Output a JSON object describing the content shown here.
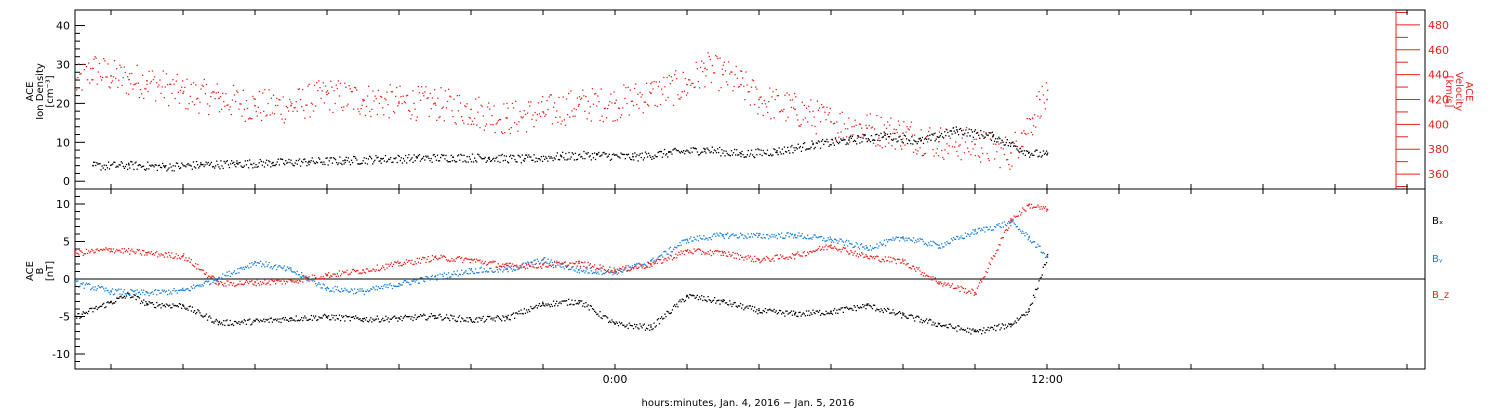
{
  "chart_data": [
    {
      "type": "scatter",
      "panel": "top",
      "ylabel": [
        "ACE",
        "Ion Density",
        "[cm⁻³]"
      ],
      "ylim": [
        -2,
        44
      ],
      "yticks": [
        0,
        10,
        20,
        30,
        40
      ],
      "y2label": [
        "ACE",
        "Velocity",
        "[km/s]"
      ],
      "y2lim": [
        348,
        492
      ],
      "y2ticks": [
        360,
        380,
        400,
        420,
        440,
        460,
        480
      ],
      "series": [
        {
          "axis": "left",
          "color": "#000000",
          "points": [
            [
              -14.5,
              4
            ],
            [
              -13.5,
              4.2
            ],
            [
              -12.5,
              3.8
            ],
            [
              -11.5,
              4.3
            ],
            [
              -10.5,
              4.6
            ],
            [
              -9.5,
              4.8
            ],
            [
              -8.5,
              5.1
            ],
            [
              -7.5,
              5.4
            ],
            [
              -6.5,
              5.8
            ],
            [
              -5.5,
              6
            ],
            [
              -4.5,
              6.2
            ],
            [
              -3.5,
              6.1
            ],
            [
              -2.5,
              5.8
            ],
            [
              -1.5,
              6.5
            ],
            [
              -0.5,
              6.8
            ],
            [
              0.5,
              6.3
            ],
            [
              1.5,
              7.4
            ],
            [
              2.5,
              8.2
            ],
            [
              3.5,
              7.1
            ],
            [
              4.5,
              7.8
            ],
            [
              5.5,
              9.5
            ],
            [
              6.5,
              10.6
            ],
            [
              7.5,
              11.8
            ],
            [
              8.5,
              10.4
            ],
            [
              9.5,
              13.2
            ],
            [
              10.5,
              11.6
            ],
            [
              11.5,
              7.4
            ],
            [
              12,
              6.8
            ]
          ]
        },
        {
          "axis": "right",
          "color": "#e8231e",
          "points": [
            [
              -15,
              433
            ],
            [
              -14.5,
              445
            ],
            [
              -14,
              439
            ],
            [
              -13.5,
              436
            ],
            [
              -13,
              435
            ],
            [
              -12,
              425
            ],
            [
              -11,
              421
            ],
            [
              -10,
              415
            ],
            [
              -9,
              415
            ],
            [
              -8,
              424
            ],
            [
              -7,
              420
            ],
            [
              -6,
              418
            ],
            [
              -5,
              417
            ],
            [
              -4,
              412
            ],
            [
              -3,
              405
            ],
            [
              -2,
              410
            ],
            [
              -1,
              416
            ],
            [
              0,
              417
            ],
            [
              1,
              425
            ],
            [
              2,
              432
            ],
            [
              2.5,
              445
            ],
            [
              3,
              440
            ],
            [
              3.5,
              432
            ],
            [
              4,
              420
            ],
            [
              5,
              412
            ],
            [
              6,
              402
            ],
            [
              7,
              397
            ],
            [
              8,
              393
            ],
            [
              9,
              386
            ],
            [
              10,
              384
            ],
            [
              11,
              377
            ],
            [
              11.3,
              393
            ],
            [
              11.6,
              405
            ],
            [
              11.8,
              420
            ],
            [
              12,
              420
            ]
          ]
        }
      ]
    },
    {
      "type": "scatter",
      "panel": "bottom",
      "ylabel": [
        "ACE",
        "B",
        "[nT]"
      ],
      "ylim": [
        -12,
        12
      ],
      "yticks": [
        -10,
        -5,
        0,
        5,
        10
      ],
      "series": [
        {
          "name": "Bₓ",
          "color": "#000000",
          "points": [
            [
              -15,
              -5
            ],
            [
              -14,
              -3
            ],
            [
              -13.5,
              -2
            ],
            [
              -13,
              -3.3
            ],
            [
              -12,
              -3.5
            ],
            [
              -11,
              -5.8
            ],
            [
              -10,
              -5.6
            ],
            [
              -9,
              -5.2
            ],
            [
              -8,
              -5
            ],
            [
              -7,
              -5.3
            ],
            [
              -6,
              -5.2
            ],
            [
              -5,
              -4.9
            ],
            [
              -4,
              -5.4
            ],
            [
              -3,
              -5.1
            ],
            [
              -2,
              -3.3
            ],
            [
              -1,
              -2.9
            ],
            [
              0,
              -6
            ],
            [
              1,
              -6.4
            ],
            [
              2,
              -2.2
            ],
            [
              3,
              -3
            ],
            [
              4,
              -4.2
            ],
            [
              5,
              -4.6
            ],
            [
              6,
              -4.3
            ],
            [
              7,
              -3.5
            ],
            [
              8,
              -4.8
            ],
            [
              9,
              -6
            ],
            [
              10,
              -7
            ],
            [
              11,
              -6
            ],
            [
              11.5,
              -4
            ],
            [
              12,
              3
            ]
          ]
        },
        {
          "name": "Bᵧ",
          "color": "#1a7fd6",
          "points": [
            [
              -15,
              -0.5
            ],
            [
              -14,
              -1.6
            ],
            [
              -13,
              -1.8
            ],
            [
              -12,
              -1.5
            ],
            [
              -11,
              0.2
            ],
            [
              -10,
              2.3
            ],
            [
              -9,
              1.2
            ],
            [
              -8,
              -1.2
            ],
            [
              -7,
              -1.6
            ],
            [
              -6,
              -0.6
            ],
            [
              -5,
              0.3
            ],
            [
              -4,
              1.2
            ],
            [
              -3,
              1.3
            ],
            [
              -2,
              2.6
            ],
            [
              -1,
              1.2
            ],
            [
              0,
              1
            ],
            [
              1,
              2.4
            ],
            [
              2,
              5.3
            ],
            [
              3,
              5.9
            ],
            [
              4,
              5.8
            ],
            [
              5,
              5.9
            ],
            [
              6,
              5.3
            ],
            [
              7,
              4.2
            ],
            [
              8,
              5.6
            ],
            [
              9,
              4.5
            ],
            [
              10,
              6.4
            ],
            [
              11,
              7.6
            ],
            [
              11.5,
              5.5
            ],
            [
              12,
              3
            ]
          ]
        },
        {
          "name": "B_z",
          "color": "#e8231e",
          "points": [
            [
              -15,
              3.5
            ],
            [
              -14,
              4
            ],
            [
              -13,
              3.5
            ],
            [
              -12,
              3.1
            ],
            [
              -11,
              -0.6
            ],
            [
              -10,
              -0.4
            ],
            [
              -9,
              -0.2
            ],
            [
              -8,
              0.6
            ],
            [
              -7,
              1.2
            ],
            [
              -6,
              2.1
            ],
            [
              -5,
              2.9
            ],
            [
              -4,
              2.6
            ],
            [
              -3,
              1.8
            ],
            [
              -2,
              1.9
            ],
            [
              -1,
              2.1
            ],
            [
              0,
              1.2
            ],
            [
              1,
              2
            ],
            [
              2,
              3.8
            ],
            [
              3,
              3.5
            ],
            [
              4,
              2.6
            ],
            [
              5,
              3.2
            ],
            [
              6,
              4.5
            ],
            [
              7,
              3
            ],
            [
              8,
              2.4
            ],
            [
              9,
              -0.4
            ],
            [
              10,
              -1.8
            ],
            [
              11,
              8
            ],
            [
              11.5,
              9.9
            ],
            [
              12,
              9.3
            ]
          ]
        }
      ]
    }
  ],
  "xaxis": {
    "range": [
      -15,
      22.5
    ],
    "tick_labels": [
      {
        "x": 0,
        "label": "0:00"
      },
      {
        "x": 12,
        "label": "12:00"
      }
    ],
    "minor_step": 2,
    "label": "hours:minutes, Jan.  4, 2016 − Jan.  5, 2016"
  },
  "legend": {
    "placement": "right",
    "entries": [
      "Bₓ",
      "Bᵧ",
      "B_z"
    ]
  },
  "colors": {
    "axes": "#000000",
    "right_axis": "#e8231e",
    "density": "#000000",
    "velocity": "#e8231e",
    "bx": "#000000",
    "by": "#1a7fd6",
    "bz": "#e8231e"
  }
}
